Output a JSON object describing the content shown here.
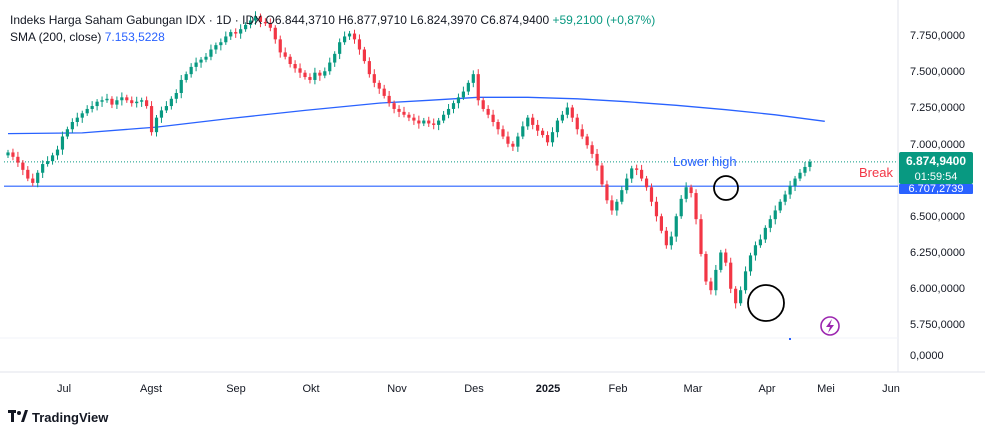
{
  "legend": {
    "symbol": "Indeks Harga Saham Gabungan IDX · 1D · IDX",
    "open_label": "O",
    "open": "6.844,3710",
    "high_label": "H",
    "high": "6.877,9710",
    "low_label": "L",
    "low": "6.824,3970",
    "close_label": "C",
    "close": "6.874,9400",
    "change": "+59,2100 (+0,87%)",
    "sma_label": "SMA (200, close)",
    "sma_value": "7.153,5228"
  },
  "brand": "TradingView",
  "colors": {
    "up": "#089981",
    "down": "#f23645",
    "sma": "#2962ff",
    "level": "#2962ff",
    "price_badge": "#089981",
    "level_badge": "#2962ff",
    "annotation_break": "#f23645",
    "annotation_lower_high": "#2962ff",
    "lightning": "#9c27b0"
  },
  "chart_data": {
    "type": "candlestick",
    "x_axis_labels": [
      "Jul",
      "Agst",
      "Sep",
      "Okt",
      "Nov",
      "Des",
      "2025",
      "Feb",
      "Mar",
      "Apr",
      "Mei",
      "Jun"
    ],
    "y_axis_labels": [
      "7.750,0000",
      "7.500,0000",
      "7.250,0000",
      "7.000,0000",
      "6.750,0000",
      "6.500,0000",
      "6.250,0000",
      "6.000,0000",
      "5.750,0000",
      "0,0000"
    ],
    "price_series_closes": [
      6940,
      6910,
      6870,
      6820,
      6760,
      6730,
      6800,
      6860,
      6880,
      6920,
      6960,
      7050,
      7100,
      7150,
      7180,
      7210,
      7240,
      7260,
      7290,
      7300,
      7310,
      7270,
      7300,
      7320,
      7300,
      7280,
      7290,
      7300,
      7260,
      7080,
      7180,
      7230,
      7260,
      7310,
      7350,
      7440,
      7480,
      7530,
      7560,
      7580,
      7600,
      7650,
      7680,
      7700,
      7740,
      7770,
      7760,
      7790,
      7820,
      7850,
      7880,
      7840,
      7830,
      7800,
      7720,
      7630,
      7600,
      7550,
      7520,
      7490,
      7460,
      7440,
      7490,
      7470,
      7500,
      7560,
      7620,
      7700,
      7740,
      7760,
      7720,
      7650,
      7570,
      7480,
      7420,
      7380,
      7330,
      7280,
      7240,
      7220,
      7200,
      7180,
      7160,
      7140,
      7160,
      7140,
      7130,
      7160,
      7200,
      7240,
      7280,
      7320,
      7360,
      7420,
      7480,
      7300,
      7240,
      7200,
      7150,
      7100,
      7050,
      7000,
      6980,
      7050,
      7120,
      7180,
      7130,
      7090,
      7060,
      7010,
      7080,
      7160,
      7200,
      7250,
      7180,
      7100,
      7050,
      6990,
      6930,
      6850,
      6720,
      6610,
      6540,
      6600,
      6680,
      6760,
      6830,
      6820,
      6760,
      6700,
      6600,
      6500,
      6400,
      6300,
      6360,
      6500,
      6620,
      6700,
      6660,
      6480,
      6240,
      6050,
      5990,
      6130,
      6250,
      6180,
      6000,
      5900,
      5990,
      6120,
      6230,
      6300,
      6340,
      6420,
      6480,
      6540,
      6600,
      6650,
      6710,
      6760,
      6800,
      6840,
      6875
    ],
    "sma_200": {
      "name": "SMA (200, close)",
      "points": [
        [
          0,
          7070
        ],
        [
          15,
          7075
        ],
        [
          30,
          7115
        ],
        [
          45,
          7175
        ],
        [
          60,
          7230
        ],
        [
          75,
          7280
        ],
        [
          85,
          7300
        ],
        [
          95,
          7320
        ],
        [
          105,
          7320
        ],
        [
          115,
          7310
        ],
        [
          125,
          7290
        ],
        [
          135,
          7265
        ],
        [
          145,
          7235
        ],
        [
          155,
          7200
        ],
        [
          165,
          7155
        ]
      ]
    },
    "horizontal_levels": [
      {
        "price": 6707.2739,
        "label": "6.707,2739"
      },
      {
        "price": 6874.94,
        "label": "6.874,9400",
        "sublabel": "01:59:54",
        "style": "dotted"
      }
    ],
    "annotations": [
      {
        "text": "Lower high",
        "type": "label"
      },
      {
        "text": "Break",
        "type": "label"
      }
    ],
    "y_range": [
      5600,
      7950
    ],
    "grid": false,
    "legend_position": "top-left"
  }
}
